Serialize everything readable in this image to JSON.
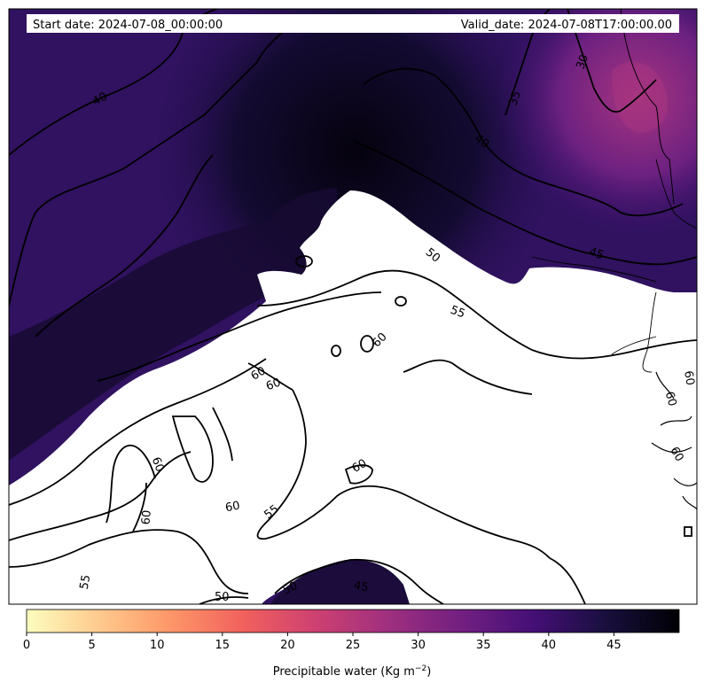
{
  "header": {
    "start_date": "Start date: 2024-07-08_00:00:00",
    "valid_date": "Valid_date: 2024-07-08T17:00:00.00"
  },
  "colormap": {
    "name": "magma_r",
    "stops": [
      "#fcfdbf",
      "#feca8d",
      "#fd9668",
      "#f1605d",
      "#cd4071",
      "#9e2f7f",
      "#721f81",
      "#440f76",
      "#180f3d",
      "#000004"
    ]
  },
  "colorbar": {
    "min": 0,
    "max": 50,
    "ticks": [
      "0",
      "5",
      "10",
      "15",
      "20",
      "25",
      "30",
      "35",
      "40",
      "45"
    ],
    "label": "Precipitable water (Kg m",
    "label_sup": "−2",
    "label_end": ")"
  },
  "contour_labels": [
    "40",
    "35",
    "30",
    "40",
    "45",
    "50",
    "55",
    "60",
    "60",
    "60",
    "60",
    "60",
    "55",
    "60",
    "60",
    "60",
    "55",
    "50",
    "50",
    "45",
    "60",
    "60"
  ]
}
